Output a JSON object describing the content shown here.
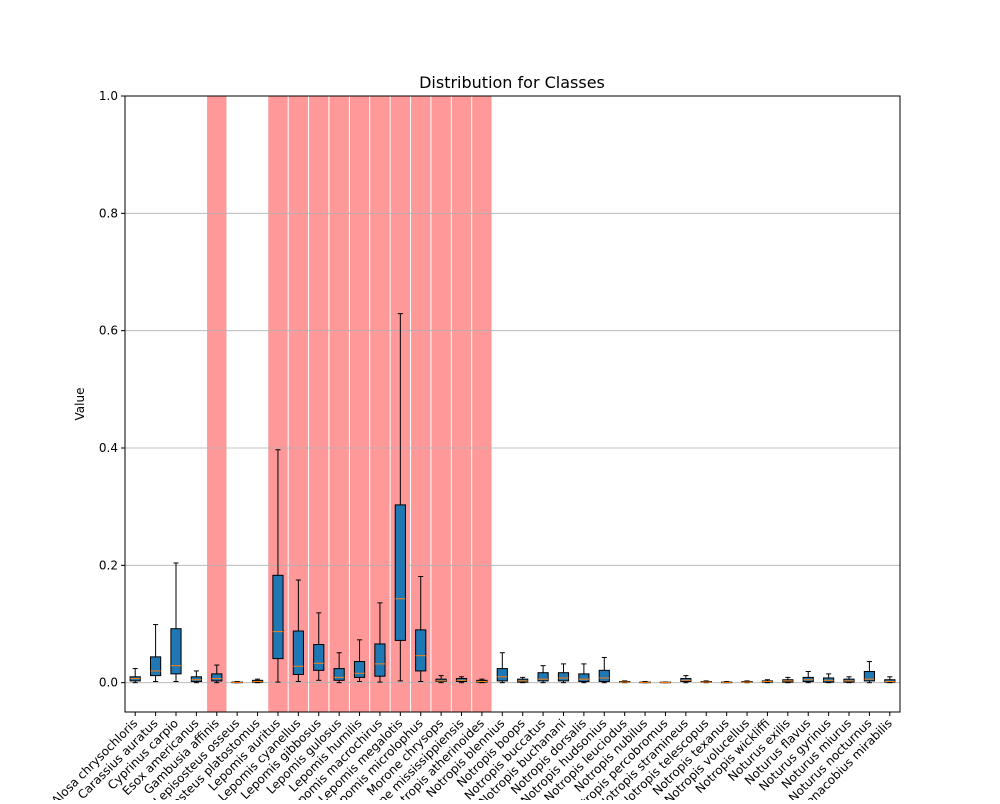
{
  "chart_data": {
    "type": "box",
    "title": "Distribution for Classes",
    "y_label": "Value",
    "categories": [
      "Alosa chrysochloris",
      "Carassius auratus",
      "Cyprinus carpio",
      "Esox americanus",
      "Gambusia affinis",
      "Lepisosteus osseus",
      "Lepisosteus platostomus",
      "Lepomis auritus",
      "Lepomis cyanellus",
      "Lepomis gibbosus",
      "Lepomis gulosus",
      "Lepomis humilis",
      "Lepomis macrochirus",
      "Lepomis megalotis",
      "Lepomis microlophus",
      "Morone chrysops",
      "Morone mississippiensis",
      "Notropis atherinoides",
      "Notropis blennius",
      "Notropis boops",
      "Notropis buccatus",
      "Notropis buchanani",
      "Notropis dorsalis",
      "Notropis hudsonius",
      "Notropis leuciodus",
      "Notropis nubilus",
      "Notropis percobromus",
      "Notropis stramineus",
      "Notropis telescopus",
      "Notropis texanus",
      "Notropis volucellus",
      "Notropis wickliffi",
      "Noturus exilis",
      "Noturus flavus",
      "Noturus gyrinus",
      "Noturus miurus",
      "Noturus nocturnus",
      "Phenacobius mirabilis"
    ],
    "highlighted": [
      false,
      false,
      false,
      false,
      true,
      false,
      false,
      true,
      true,
      true,
      true,
      true,
      true,
      true,
      true,
      true,
      true,
      true,
      false,
      false,
      false,
      false,
      false,
      false,
      false,
      false,
      false,
      false,
      false,
      false,
      false,
      false,
      false,
      false,
      false,
      false,
      false,
      false
    ],
    "whislo": [
      0,
      0.002,
      0.002,
      0,
      0,
      0,
      0,
      0.001,
      0.002,
      0.004,
      0,
      0.002,
      0.001,
      0.003,
      0.002,
      0,
      0,
      0,
      0,
      0,
      0,
      0,
      0,
      0,
      0,
      0,
      0,
      0,
      0,
      0,
      0,
      0,
      0,
      0,
      0,
      0,
      0,
      0
    ],
    "q1": [
      0.003,
      0.012,
      0.015,
      0.002,
      0.003,
      0,
      0.001,
      0.041,
      0.014,
      0.021,
      0.004,
      0.009,
      0.011,
      0.072,
      0.02,
      0.002,
      0.002,
      0.001,
      0.003,
      0.001,
      0.003,
      0.003,
      0.002,
      0.002,
      0.001,
      0,
      0,
      0.002,
      0.001,
      0,
      0.001,
      0.001,
      0.001,
      0.002,
      0.001,
      0.001,
      0.003,
      0.001
    ],
    "median": [
      0.007,
      0.02,
      0.029,
      0.005,
      0.007,
      0.0005,
      0.002,
      0.087,
      0.028,
      0.033,
      0.009,
      0.016,
      0.032,
      0.143,
      0.046,
      0.003,
      0.004,
      0.002,
      0.01,
      0.003,
      0.006,
      0.008,
      0.006,
      0.008,
      0.001,
      0.0005,
      0.0002,
      0.004,
      0.001,
      0.0005,
      0.001,
      0.002,
      0.003,
      0.005,
      0.004,
      0.003,
      0.006,
      0.002
    ],
    "q3": [
      0.01,
      0.044,
      0.092,
      0.01,
      0.015,
      0.001,
      0.004,
      0.183,
      0.088,
      0.065,
      0.024,
      0.036,
      0.066,
      0.303,
      0.09,
      0.006,
      0.007,
      0.004,
      0.024,
      0.006,
      0.017,
      0.017,
      0.015,
      0.021,
      0.002,
      0.001,
      0.0008,
      0.007,
      0.002,
      0.001,
      0.002,
      0.003,
      0.005,
      0.009,
      0.008,
      0.006,
      0.019,
      0.005
    ],
    "whishi": [
      0.024,
      0.099,
      0.204,
      0.02,
      0.03,
      0.002,
      0.006,
      0.397,
      0.175,
      0.119,
      0.051,
      0.073,
      0.136,
      0.629,
      0.181,
      0.012,
      0.01,
      0.006,
      0.051,
      0.009,
      0.029,
      0.032,
      0.032,
      0.043,
      0.003,
      0.002,
      0.001,
      0.012,
      0.003,
      0.002,
      0.003,
      0.005,
      0.009,
      0.019,
      0.015,
      0.01,
      0.036,
      0.01
    ],
    "box_color": "#1f77b4",
    "median_color": "#ff7f0e",
    "highlight_color": "#ff9999",
    "ylim": [
      -0.05,
      1.0
    ],
    "yticks": [
      {
        "value": 0,
        "label": "0.0"
      },
      {
        "value": 0.2,
        "label": "0.2"
      },
      {
        "value": 0.4,
        "label": "0.4"
      },
      {
        "value": 0.6,
        "label": "0.6"
      },
      {
        "value": 0.8,
        "label": "0.8"
      },
      {
        "value": 1.0,
        "label": "1.0"
      }
    ],
    "grid": true
  }
}
